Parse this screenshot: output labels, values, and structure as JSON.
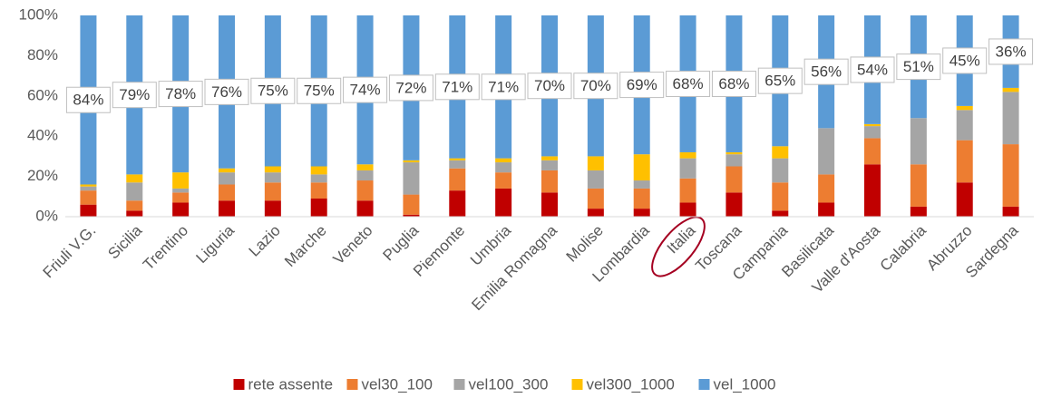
{
  "chart_data": {
    "type": "bar",
    "stacked": true,
    "categories": [
      "Friuli V.G.",
      "Sicilia",
      "Trentino",
      "Liguria",
      "Lazio",
      "Marche",
      "Veneto",
      "Puglia",
      "Piemonte",
      "Umbria",
      "Emilia Romagna",
      "Molise",
      "Lombardia",
      "Italia",
      "Toscana",
      "Campania",
      "Basilicata",
      "Valle d'Aosta",
      "Calabria",
      "Abruzzo",
      "Sardegna"
    ],
    "series": [
      {
        "name": "rete assente",
        "color": "#c00000",
        "values": [
          6,
          3,
          7,
          8,
          8,
          9,
          8,
          1,
          13,
          14,
          12,
          4,
          4,
          7,
          12,
          3,
          7,
          26,
          5,
          17,
          5
        ]
      },
      {
        "name": "vel30_100",
        "color": "#ed7d31",
        "values": [
          7,
          5,
          5,
          8,
          9,
          8,
          10,
          10,
          11,
          8,
          11,
          10,
          10,
          12,
          13,
          14,
          14,
          13,
          21,
          21,
          31
        ]
      },
      {
        "name": "vel100_300",
        "color": "#a5a5a5",
        "values": [
          2,
          9,
          2,
          6,
          5,
          4,
          5,
          16,
          4,
          5,
          5,
          9,
          4,
          10,
          6,
          12,
          23,
          6,
          23,
          15,
          26
        ]
      },
      {
        "name": "vel300_1000",
        "color": "#ffc000",
        "values": [
          1,
          4,
          8,
          2,
          3,
          4,
          3,
          1,
          1,
          2,
          2,
          7,
          13,
          3,
          1,
          6,
          0,
          1,
          0,
          2,
          2
        ]
      },
      {
        "name": "vel_1000",
        "color": "#5b9bd5",
        "values": [
          84,
          79,
          78,
          76,
          75,
          75,
          74,
          72,
          71,
          71,
          70,
          70,
          69,
          68,
          68,
          65,
          56,
          54,
          51,
          45,
          36
        ],
        "value_labels": [
          "84%",
          "79%",
          "78%",
          "76%",
          "75%",
          "75%",
          "74%",
          "72%",
          "71%",
          "71%",
          "70%",
          "70%",
          "69%",
          "68%",
          "68%",
          "65%",
          "56%",
          "54%",
          "51%",
          "45%",
          "36%"
        ]
      }
    ],
    "ylim": [
      0,
      100
    ],
    "yticks": [
      {
        "value": 0,
        "label": "0%"
      },
      {
        "value": 20,
        "label": "20%"
      },
      {
        "value": 40,
        "label": "40%"
      },
      {
        "value": 60,
        "label": "60%"
      },
      {
        "value": 80,
        "label": "80%"
      },
      {
        "value": 100,
        "label": "100%"
      }
    ],
    "legend": "bottom"
  }
}
